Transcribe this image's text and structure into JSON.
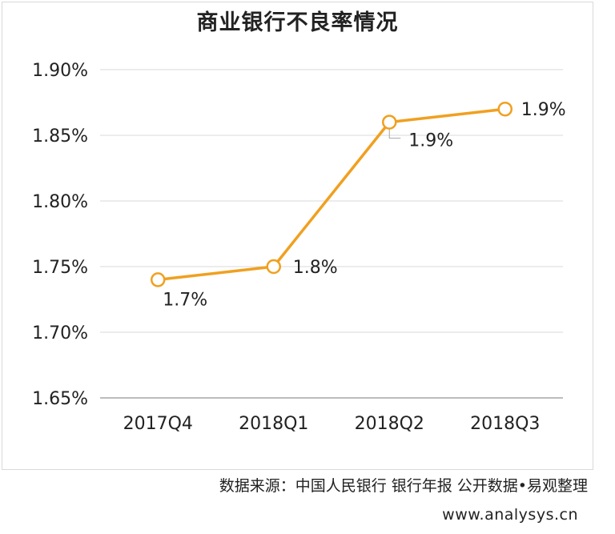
{
  "chart_data": {
    "type": "line",
    "title": "商业银行不良率情况",
    "categories": [
      "2017Q4",
      "2018Q1",
      "2018Q2",
      "2018Q3"
    ],
    "series": [
      {
        "values": [
          1.74,
          1.75,
          1.86,
          1.87
        ],
        "labels": [
          "1.7%",
          "1.8%",
          "1.9%",
          "1.9%"
        ],
        "color": "#f0a020"
      }
    ],
    "yticks": [
      "1.65%",
      "1.70%",
      "1.75%",
      "1.80%",
      "1.85%",
      "1.90%"
    ],
    "ylim": [
      1.65,
      1.9
    ],
    "grid": true,
    "legend": "none"
  },
  "footer": {
    "source": "数据来源：中国人民银行 银行年报 公开数据•易观整理",
    "site": "www.analysys.cn"
  }
}
